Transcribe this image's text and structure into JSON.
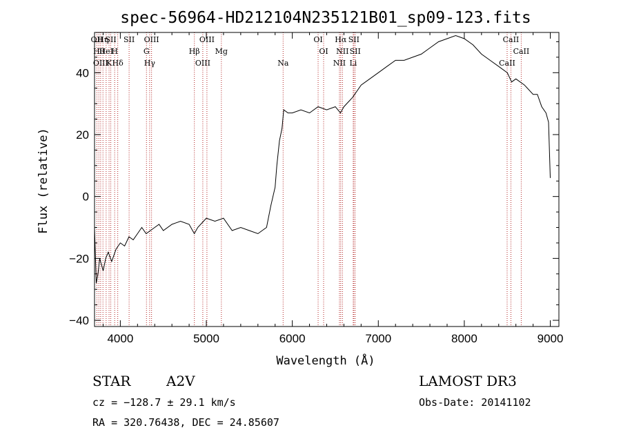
{
  "chart_data": {
    "type": "line",
    "title": "spec-56964-HD212104N235121B01_sp09-123.fits",
    "xlabel": "Wavelength (Å)",
    "ylabel": "Flux (relative)",
    "xlim": [
      3700,
      9100
    ],
    "ylim": [
      -42,
      53
    ],
    "x_ticks": [
      4000,
      5000,
      6000,
      7000,
      8000,
      9000
    ],
    "y_ticks": [
      -40,
      -20,
      0,
      20,
      40
    ],
    "x_tick_labels": [
      "4000",
      "5000",
      "6000",
      "7000",
      "8000",
      "9000"
    ],
    "y_tick_labels": [
      "−40",
      "−20",
      "0",
      "20",
      "40"
    ],
    "grid": false,
    "line_color": "#000000",
    "marker_color": "#b22222",
    "series": [
      {
        "x": [
          3700,
          3720,
          3740,
          3760,
          3780,
          3800,
          3830,
          3860,
          3900,
          3950,
          4000,
          4050,
          4100,
          4150,
          4200,
          4250,
          4300,
          4350,
          4400,
          4450,
          4500,
          4600,
          4700,
          4800,
          4860,
          4900,
          5000,
          5100,
          5200,
          5300,
          5400,
          5500,
          5600,
          5650,
          5700,
          5750,
          5800,
          5820,
          5850,
          5880,
          5900,
          5950,
          6000,
          6100,
          6200,
          6300,
          6400,
          6500,
          6560,
          6600,
          6700,
          6800,
          6900,
          7000,
          7100,
          7200,
          7300,
          7400,
          7500,
          7600,
          7700,
          7800,
          7900,
          8000,
          8100,
          8200,
          8300,
          8400,
          8500,
          8550,
          8600,
          8700,
          8800,
          8850,
          8900,
          8950,
          8980,
          9000
        ],
        "y": [
          -10,
          -28,
          -25,
          -20,
          -22,
          -24,
          -20,
          -18,
          -21,
          -17,
          -15,
          -16,
          -13,
          -14,
          -12,
          -10,
          -12,
          -11,
          -10,
          -9,
          -11,
          -9,
          -8,
          -9,
          -12,
          -10,
          -7,
          -8,
          -7,
          -11,
          -10,
          -11,
          -12,
          -11,
          -10,
          -3,
          3,
          10,
          18,
          22,
          28,
          27,
          27,
          28,
          27,
          29,
          28,
          29,
          27,
          29,
          32,
          36,
          38,
          40,
          42,
          44,
          44,
          45,
          46,
          48,
          50,
          51,
          52,
          51,
          49,
          46,
          44,
          42,
          40,
          37,
          38,
          36,
          33,
          33,
          29,
          27,
          24,
          6
        ]
      }
    ],
    "lines": [
      {
        "wl": 3727,
        "label": "OII"
      },
      {
        "wl": 3750,
        "label": "Hθ"
      },
      {
        "wl": 3771,
        "label": "OIII"
      },
      {
        "wl": 3798,
        "label": "Hη"
      },
      {
        "wl": 3835,
        "label": "HeI"
      },
      {
        "wl": 3869,
        "label": "K"
      },
      {
        "wl": 3889,
        "label": "SII"
      },
      {
        "wl": 3934,
        "label": "H"
      },
      {
        "wl": 3970,
        "label": "Hδ"
      },
      {
        "wl": 4102,
        "label": "SII"
      },
      {
        "wl": 4304,
        "label": "G"
      },
      {
        "wl": 4341,
        "label": "Hγ"
      },
      {
        "wl": 4363,
        "label": "OIII"
      },
      {
        "wl": 4861,
        "label": "Hβ"
      },
      {
        "wl": 4959,
        "label": "OIII"
      },
      {
        "wl": 5007,
        "label": "OIII"
      },
      {
        "wl": 5175,
        "label": "Mg"
      },
      {
        "wl": 5893,
        "label": "Na"
      },
      {
        "wl": 6300,
        "label": "OI"
      },
      {
        "wl": 6364,
        "label": "OI"
      },
      {
        "wl": 6548,
        "label": "NII"
      },
      {
        "wl": 6563,
        "label": "Hα"
      },
      {
        "wl": 6583,
        "label": "NII"
      },
      {
        "wl": 6708,
        "label": "Li"
      },
      {
        "wl": 6716,
        "label": "SII"
      },
      {
        "wl": 6731,
        "label": "SII"
      },
      {
        "wl": 8498,
        "label": "CaII"
      },
      {
        "wl": 8542,
        "label": "CaII"
      },
      {
        "wl": 8662,
        "label": "CaII"
      }
    ]
  },
  "info": {
    "star_label": "STAR",
    "spectral_type": "A2V",
    "survey": "LAMOST DR3",
    "velocity": "cz = −128.7 ± 29.1 km/s",
    "obs_date": "Obs-Date: 20141102",
    "coords": "RA = 320.76438, DEC =  24.85607"
  }
}
